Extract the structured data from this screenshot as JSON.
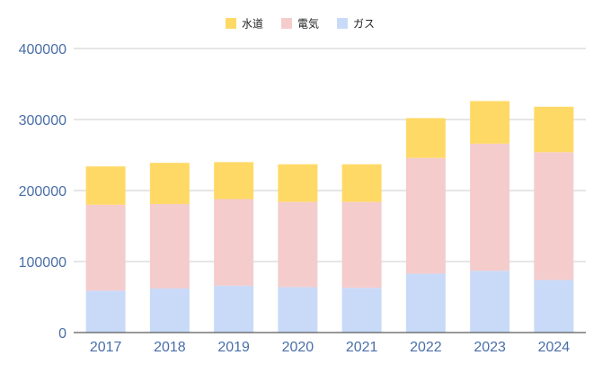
{
  "chart_data": {
    "type": "bar",
    "stacked": true,
    "categories": [
      "2017",
      "2018",
      "2019",
      "2020",
      "2021",
      "2022",
      "2023",
      "2024"
    ],
    "series": [
      {
        "name": "ガス",
        "color": "#c9daf8",
        "values": [
          59000,
          62000,
          66000,
          64000,
          63000,
          83000,
          87000,
          74000
        ]
      },
      {
        "name": "電気",
        "color": "#f4cccc",
        "values": [
          121000,
          119000,
          122000,
          120000,
          121000,
          163000,
          179000,
          180000
        ]
      },
      {
        "name": "水道",
        "color": "#ffd966",
        "values": [
          54000,
          58000,
          52000,
          53000,
          53000,
          56000,
          60000,
          64000
        ]
      }
    ],
    "legend_order": [
      "水道",
      "電気",
      "ガス"
    ],
    "legend_position": "top-center",
    "ylim": [
      0,
      400000
    ],
    "yticks": [
      0,
      100000,
      200000,
      300000,
      400000
    ],
    "grid": true,
    "title": "",
    "xlabel": "",
    "ylabel": ""
  }
}
